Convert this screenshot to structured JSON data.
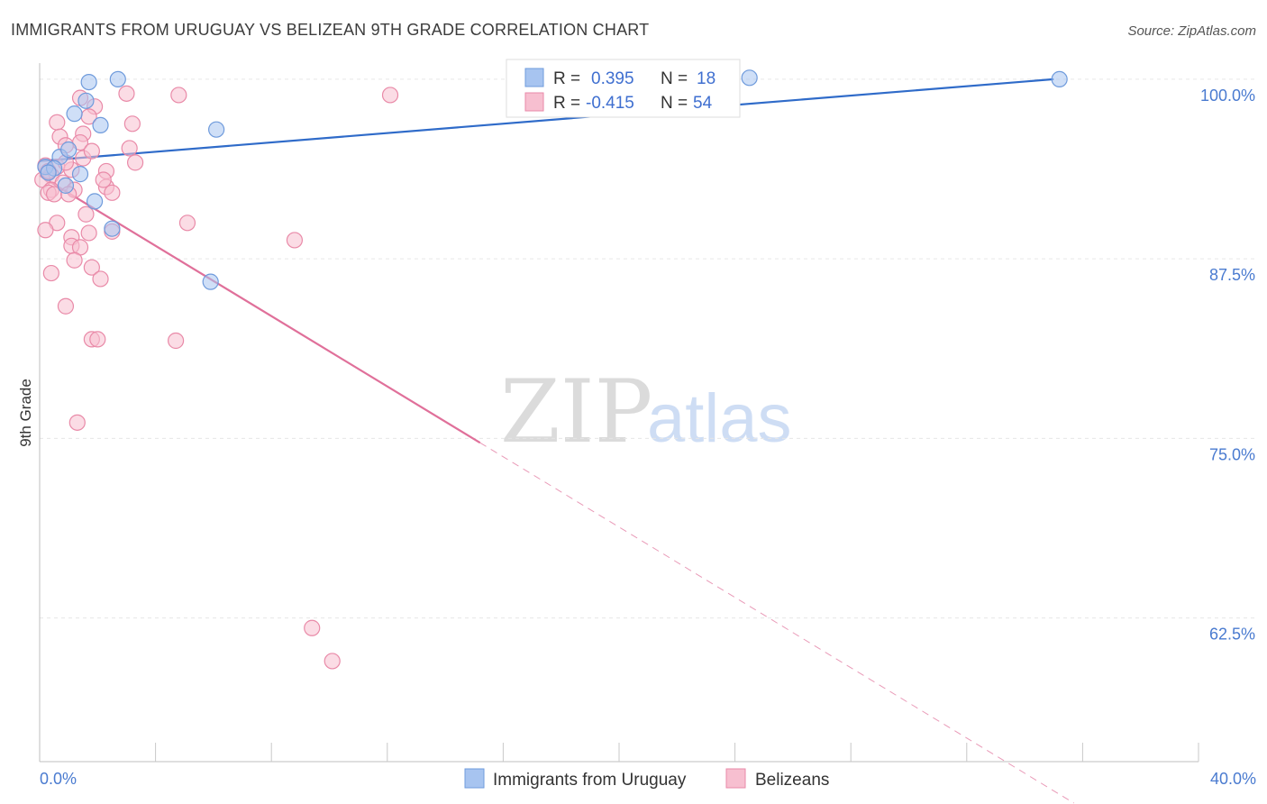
{
  "chart_data": {
    "type": "scatter",
    "title": "IMMIGRANTS FROM URUGUAY VS BELIZEAN 9TH GRADE CORRELATION CHART",
    "source": "Source: ZipAtlas.com",
    "xlabel": "",
    "ylabel": "9th Grade",
    "xlim": [
      0,
      40
    ],
    "ylim": [
      52.5,
      101.5
    ],
    "x_tick_labels": {
      "min": "0.0%",
      "max": "40.0%"
    },
    "y_ticks": [
      {
        "value": 100.0,
        "label": "100.0%"
      },
      {
        "value": 87.5,
        "label": "87.5%"
      },
      {
        "value": 75.0,
        "label": "75.0%"
      },
      {
        "value": 62.5,
        "label": "62.5%"
      }
    ],
    "grid": true,
    "watermark": {
      "part1": "ZIP",
      "part2": "atlas"
    },
    "legend_box": {
      "rows": [
        {
          "r_label": "R =",
          "r_value": "0.395",
          "n_label": "N =",
          "n_value": "18"
        },
        {
          "r_label": "R =",
          "r_value": "-0.415",
          "n_label": "N =",
          "n_value": "54"
        }
      ]
    },
    "series": [
      {
        "name": "Immigrants from Uruguay",
        "color": "#a7c4f0",
        "stroke": "#6f9bdc",
        "line_color": "#2f6bc9",
        "trend": {
          "x0": 0.0,
          "y0": 94.3,
          "x1": 35.0,
          "y1": 100.0,
          "dash_from": 35.0,
          "dash_to": 35.0
        },
        "points": [
          [
            1.7,
            99.8
          ],
          [
            2.7,
            100.0
          ],
          [
            1.6,
            98.5
          ],
          [
            1.2,
            97.6
          ],
          [
            2.1,
            96.8
          ],
          [
            6.1,
            96.5
          ],
          [
            0.7,
            94.6
          ],
          [
            1.0,
            95.1
          ],
          [
            0.2,
            93.9
          ],
          [
            0.5,
            93.8
          ],
          [
            1.4,
            93.4
          ],
          [
            0.9,
            92.6
          ],
          [
            1.9,
            91.5
          ],
          [
            2.5,
            89.6
          ],
          [
            5.9,
            85.9
          ],
          [
            24.5,
            100.1
          ],
          [
            35.2,
            100.0
          ],
          [
            0.3,
            93.5
          ]
        ]
      },
      {
        "name": "Belizeans",
        "color": "#f7bfd0",
        "stroke": "#e98aa8",
        "line_color": "#e0709a",
        "trend": {
          "x0": 0.0,
          "y0": 93.3,
          "x1": 15.2,
          "y1": 74.7,
          "dash_from": 15.2,
          "dash_to": 35.7
        },
        "points": [
          [
            3.0,
            99.0
          ],
          [
            4.8,
            98.9
          ],
          [
            12.1,
            98.9
          ],
          [
            1.4,
            98.7
          ],
          [
            1.9,
            98.1
          ],
          [
            1.7,
            97.4
          ],
          [
            0.6,
            97.0
          ],
          [
            3.2,
            96.9
          ],
          [
            1.5,
            96.2
          ],
          [
            0.7,
            96.0
          ],
          [
            1.4,
            95.6
          ],
          [
            0.9,
            95.4
          ],
          [
            3.1,
            95.2
          ],
          [
            1.5,
            94.5
          ],
          [
            3.3,
            94.2
          ],
          [
            0.2,
            94.0
          ],
          [
            0.6,
            93.9
          ],
          [
            1.1,
            93.7
          ],
          [
            2.3,
            93.6
          ],
          [
            0.4,
            93.3
          ],
          [
            0.1,
            93.0
          ],
          [
            0.8,
            92.8
          ],
          [
            2.3,
            92.5
          ],
          [
            0.4,
            92.3
          ],
          [
            1.2,
            92.3
          ],
          [
            0.3,
            92.1
          ],
          [
            0.5,
            92.0
          ],
          [
            1.0,
            92.0
          ],
          [
            2.5,
            92.1
          ],
          [
            1.6,
            90.6
          ],
          [
            0.6,
            90.0
          ],
          [
            5.1,
            90.0
          ],
          [
            0.2,
            89.5
          ],
          [
            1.7,
            89.3
          ],
          [
            2.5,
            89.4
          ],
          [
            1.1,
            89.0
          ],
          [
            8.8,
            88.8
          ],
          [
            1.1,
            88.4
          ],
          [
            1.4,
            88.3
          ],
          [
            1.2,
            87.4
          ],
          [
            1.8,
            86.9
          ],
          [
            0.4,
            86.5
          ],
          [
            2.1,
            86.1
          ],
          [
            0.9,
            84.2
          ],
          [
            1.8,
            81.9
          ],
          [
            2.0,
            81.9
          ],
          [
            4.7,
            81.8
          ],
          [
            1.3,
            76.1
          ],
          [
            9.4,
            61.8
          ],
          [
            10.1,
            59.5
          ],
          [
            0.3,
            93.6
          ],
          [
            0.9,
            94.2
          ],
          [
            1.8,
            95.0
          ],
          [
            2.2,
            93.0
          ]
        ]
      }
    ]
  }
}
